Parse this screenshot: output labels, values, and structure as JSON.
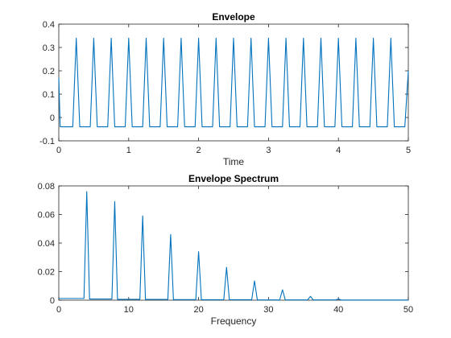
{
  "chart_data": [
    {
      "type": "line",
      "title": "Envelope",
      "xlabel": "Time",
      "ylabel": "",
      "xlim": [
        0,
        5
      ],
      "ylim": [
        -0.1,
        0.4
      ],
      "xticks": [
        0,
        1,
        2,
        3,
        4,
        5
      ],
      "yticks": [
        -0.1,
        0,
        0.1,
        0.2,
        0.3,
        0.4
      ],
      "xticklabels": [
        "0",
        "1",
        "2",
        "3",
        "4",
        "5"
      ],
      "yticklabels": [
        "-0.1",
        "0",
        "0.1",
        "0.2",
        "0.3",
        "0.4"
      ],
      "color": "#0072BD",
      "series": [
        {
          "x": [
            0,
            0.02,
            0.03,
            0.2,
            0.25,
            0.3,
            0.45,
            0.5,
            0.55,
            0.7,
            0.75,
            0.8,
            0.95,
            1.0,
            1.05,
            1.2,
            1.25,
            1.3,
            1.45,
            1.5,
            1.55,
            1.7,
            1.75,
            1.8,
            1.95,
            2.0,
            2.05,
            2.2,
            2.25,
            2.3,
            2.45,
            2.5,
            2.55,
            2.7,
            2.75,
            2.8,
            2.95,
            3.0,
            3.05,
            3.2,
            3.25,
            3.3,
            3.45,
            3.5,
            3.55,
            3.7,
            3.75,
            3.8,
            3.95,
            4.0,
            4.05,
            4.2,
            4.25,
            4.3,
            4.45,
            4.5,
            4.55,
            4.7,
            4.75,
            4.8,
            4.95,
            5.0
          ],
          "y": [
            0.17,
            -0.04,
            -0.04,
            -0.04,
            0.34,
            -0.04,
            -0.04,
            0.34,
            -0.04,
            -0.04,
            0.34,
            -0.04,
            -0.04,
            0.34,
            -0.04,
            -0.04,
            0.34,
            -0.04,
            -0.04,
            0.34,
            -0.04,
            -0.04,
            0.34,
            -0.04,
            -0.04,
            0.34,
            -0.04,
            -0.04,
            0.34,
            -0.04,
            -0.04,
            0.34,
            -0.04,
            -0.04,
            0.34,
            -0.04,
            -0.04,
            0.34,
            -0.04,
            -0.04,
            0.34,
            -0.04,
            -0.04,
            0.34,
            -0.04,
            -0.04,
            0.34,
            -0.04,
            -0.04,
            0.34,
            -0.04,
            -0.04,
            0.34,
            -0.04,
            -0.04,
            0.34,
            -0.04,
            -0.04,
            0.34,
            -0.04,
            -0.04,
            0.2
          ]
        }
      ]
    },
    {
      "type": "line",
      "title": "Envelope Spectrum",
      "xlabel": "Frequency",
      "ylabel": "",
      "xlim": [
        0,
        50
      ],
      "ylim": [
        0,
        0.08
      ],
      "xticks": [
        0,
        10,
        20,
        30,
        40,
        50
      ],
      "yticks": [
        0,
        0.02,
        0.04,
        0.06,
        0.08
      ],
      "xticklabels": [
        "0",
        "10",
        "20",
        "30",
        "40",
        "50"
      ],
      "yticklabels": [
        "0",
        "0.02",
        "0.04",
        "0.06",
        "0.08"
      ],
      "color": "#0072BD",
      "series": [
        {
          "x": [
            0,
            3.6,
            4,
            4.4,
            7.6,
            8,
            8.4,
            11.6,
            12,
            12.4,
            15.6,
            16,
            16.4,
            19.6,
            20,
            20.4,
            23.6,
            24,
            24.4,
            27.6,
            28,
            28.4,
            31.6,
            32,
            32.4,
            35.6,
            36,
            36.4,
            39.6,
            40,
            40.4,
            50
          ],
          "y": [
            0.0012,
            0.0012,
            0.076,
            0.0008,
            0.0008,
            0.069,
            0.0006,
            0.0006,
            0.059,
            0.0005,
            0.0005,
            0.046,
            0.0004,
            0.0004,
            0.034,
            0.0003,
            0.0003,
            0.023,
            0.0003,
            0.0003,
            0.0135,
            0.0002,
            0.0002,
            0.0073,
            0.0002,
            0.0002,
            0.0027,
            0.0002,
            0.0002,
            0.0008,
            0.0001,
            0.0001
          ]
        }
      ]
    }
  ]
}
